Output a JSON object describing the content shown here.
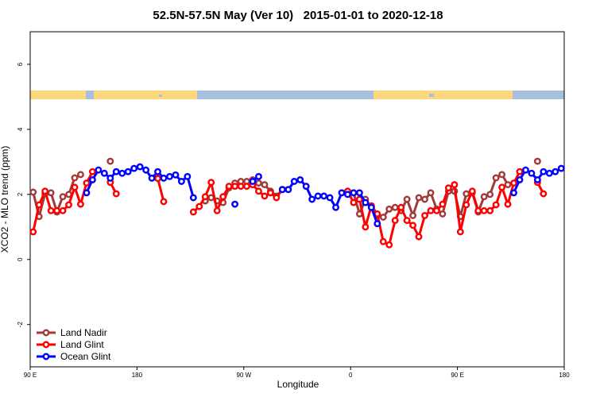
{
  "chart_data": {
    "type": "line",
    "title": "52.5N-57.5N May (Ver 10)   2015-01-01 to 2020-12-18",
    "x_label": "Longitude",
    "y_label": "XCO2 - MLO trend (ppm)",
    "xlim": [
      90,
      540
    ],
    "ylim": [
      -3.3,
      7
    ],
    "xticks": [
      {
        "value": 90,
        "label": "90 E"
      },
      180,
      {
        "value": 270,
        "label": "90 W"
      },
      {
        "value": 360,
        "label": "0"
      },
      {
        "value": 450,
        "label": "90 E"
      },
      {
        "value": 540,
        "label": "180"
      }
    ],
    "yticks": [
      -2,
      0,
      2,
      4,
      6
    ],
    "legend": "bottom-left",
    "series": [
      {
        "name": "Land Nadir",
        "color": "#a33a3a",
        "x": [
          92.5,
          97.5,
          102.5,
          107.5,
          112.5,
          117.5,
          122.5,
          127.5,
          132.5,
          137.5,
          157.5,
          227.5,
          237.5,
          242.5,
          247.5,
          252.5,
          257.5,
          262.5,
          267.5,
          272.5,
          277.5,
          282.5,
          287.5,
          292.5,
          297.5,
          302.5,
          332.5,
          362.5,
          367.5,
          372.5,
          377.5,
          382.5,
          387.5,
          392.5,
          397.5,
          402.5,
          407.5,
          412.5,
          417.5,
          422.5,
          427.5,
          432.5,
          437.5,
          442.5,
          447.5,
          452.5,
          457.5,
          462.5,
          467.5,
          472.5,
          477.5,
          482.5,
          487.5,
          492.5,
          497.5,
          517.5
        ],
        "values": [
          2.07,
          1.32,
          2.02,
          2.05,
          1.46,
          1.93,
          2.0,
          2.51,
          2.61,
          null,
          3.02,
          null,
          1.8,
          1.9,
          1.8,
          1.75,
          2.2,
          2.35,
          2.4,
          2.4,
          2.45,
          2.35,
          2.3,
          2.1,
          1.95,
          2.15,
          null,
          2.05,
          1.4,
          1.85,
          1.6,
          1.35,
          1.3,
          1.55,
          1.6,
          1.5,
          1.85,
          1.35,
          1.9,
          1.85,
          2.05,
          1.55,
          1.4,
          2.1,
          2.1,
          1.32,
          2.02,
          2.05,
          1.46,
          1.93,
          2.0,
          2.51,
          2.61,
          2.3,
          null,
          3.02
        ]
      },
      {
        "name": "Land Glint",
        "color": "#ff0000",
        "x": [
          92.5,
          97.5,
          102.5,
          107.5,
          112.5,
          117.5,
          122.5,
          127.5,
          132.5,
          137.5,
          142.5,
          147.5,
          157.5,
          162.5,
          177.5,
          197.5,
          202.5,
          217.5,
          227.5,
          232.5,
          237.5,
          242.5,
          247.5,
          252.5,
          257.5,
          262.5,
          267.5,
          272.5,
          277.5,
          282.5,
          287.5,
          292.5,
          297.5,
          302.5,
          332.5,
          357.5,
          362.5,
          367.5,
          372.5,
          377.5,
          382.5,
          387.5,
          392.5,
          397.5,
          402.5,
          407.5,
          412.5,
          417.5,
          422.5,
          427.5,
          432.5,
          437.5,
          442.5,
          447.5,
          452.5,
          457.5,
          462.5,
          467.5,
          472.5,
          477.5,
          482.5,
          487.5,
          492.5,
          497.5,
          502.5,
          507.5,
          517.5,
          522.5
        ],
        "values": [
          0.85,
          1.68,
          2.1,
          1.5,
          1.5,
          1.5,
          1.68,
          2.22,
          1.7,
          2.35,
          2.7,
          null,
          2.37,
          2.02,
          null,
          2.49,
          1.78,
          null,
          1.46,
          1.63,
          1.93,
          2.37,
          1.5,
          1.93,
          2.25,
          2.25,
          2.25,
          2.25,
          2.3,
          2.1,
          1.95,
          2.05,
          1.9,
          2.15,
          null,
          2.1,
          1.75,
          1.85,
          1.0,
          1.65,
          1.4,
          0.55,
          0.45,
          1.2,
          1.6,
          1.2,
          1.05,
          0.7,
          1.35,
          1.5,
          1.5,
          1.7,
          2.2,
          2.3,
          0.85,
          1.68,
          2.1,
          1.5,
          1.5,
          1.5,
          1.68,
          2.22,
          1.7,
          2.35,
          2.7,
          null,
          2.37,
          2.02
        ]
      },
      {
        "name": "Ocean Glint",
        "color": "#0000ff",
        "x": [
          137.5,
          142.5,
          147.5,
          152.5,
          157.5,
          162.5,
          167.5,
          172.5,
          177.5,
          182.5,
          187.5,
          192.5,
          197.5,
          202.5,
          207.5,
          212.5,
          217.5,
          222.5,
          227.5,
          247.5,
          262.5,
          270.5,
          277.5,
          282.5,
          292.5,
          302.5,
          307.5,
          312.5,
          317.5,
          322.5,
          327.5,
          332.5,
          337.5,
          342.5,
          347.5,
          352.5,
          357.5,
          362.5,
          367.5,
          372.5,
          377.5,
          382.5,
          437.5,
          497.5,
          502.5,
          507.5,
          512.5,
          517.5,
          522.5,
          527.5,
          532.5,
          537.5
        ],
        "values": [
          2.05,
          2.45,
          2.75,
          2.65,
          2.5,
          2.7,
          2.65,
          2.7,
          2.8,
          2.85,
          2.75,
          2.5,
          2.7,
          2.5,
          2.55,
          2.6,
          2.4,
          2.55,
          1.9,
          null,
          1.7,
          null,
          2.4,
          2.55,
          null,
          2.15,
          2.15,
          2.4,
          2.45,
          2.25,
          1.85,
          1.95,
          1.95,
          1.9,
          1.6,
          2.05,
          2.0,
          2.05,
          2.05,
          1.75,
          1.6,
          1.1,
          null,
          2.05,
          2.45,
          2.75,
          2.65,
          2.45,
          2.7,
          2.65,
          2.7,
          2.8
        ]
      }
    ]
  }
}
